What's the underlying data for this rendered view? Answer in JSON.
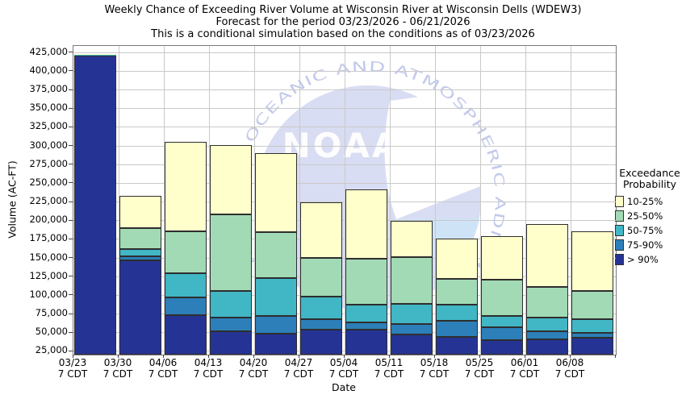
{
  "chart_data": {
    "type": "bar",
    "stacked": true,
    "title": "Weekly Chance of Exceeding River Volume at Wisconsin River at Wisconsin Dells (WDEW3)",
    "subtitle": "Forecast for the period 03/23/2026 - 06/21/2026",
    "subtitle2": "This is a conditional simulation based on the conditions as of 03/23/2026",
    "xlabel": "Date",
    "ylabel": "Volume (AC-FT)",
    "x_tick_line2": "7 CDT",
    "categories": [
      "03/23",
      "03/30",
      "04/06",
      "04/13",
      "04/20",
      "04/27",
      "05/04",
      "05/11",
      "05/18",
      "05/25",
      "06/01",
      "06/08"
    ],
    "y_ticks": [
      25000,
      50000,
      75000,
      100000,
      125000,
      150000,
      175000,
      200000,
      225000,
      250000,
      275000,
      300000,
      325000,
      350000,
      375000,
      400000,
      425000
    ],
    "ylim": [
      20500,
      434000
    ],
    "grid": true,
    "units": "AC-FT",
    "series": [
      {
        "name": "> 90%",
        "color": "#253494",
        "stack_top_acft": [
          421500,
          147000,
          73000,
          52000,
          48500,
          54000,
          54500,
          47500,
          44000,
          40000,
          41500,
          43500
        ]
      },
      {
        "name": "75-90%",
        "color": "#2C7FB8",
        "stack_top_acft": [
          422000,
          152000,
          97000,
          70500,
          72000,
          68500,
          64000,
          62000,
          66000,
          57000,
          52000,
          49500
        ]
      },
      {
        "name": "50-75%",
        "color": "#41B6C4",
        "stack_top_acft": [
          422500,
          162000,
          130000,
          106000,
          123000,
          98000,
          87500,
          89000,
          87000,
          72000,
          70000,
          68000
        ]
      },
      {
        "name": "25-50%",
        "color": "#A1DAB4",
        "stack_top_acft": [
          423000,
          190000,
          186000,
          208000,
          184500,
          150000,
          148500,
          151000,
          122000,
          121000,
          111000,
          106000
        ]
      },
      {
        "name": "10-25%",
        "color": "#FFFFCC",
        "stack_top_acft": [
          423400,
          233000,
          306000,
          301000,
          290000,
          225000,
          242000,
          200000,
          176000,
          179000,
          195000,
          185500
        ]
      }
    ],
    "legend": {
      "title_line1": "Exceedance",
      "title_line2": "Probability",
      "position": "right",
      "order_top_to_bottom": [
        "10-25%",
        "25-50%",
        "50-75%",
        "75-90%",
        "> 90%"
      ]
    },
    "watermark": {
      "org": "NOAA",
      "ring_text": "NATIONAL OCEANIC AND ATMOSPHERIC ADMINISTRATION"
    }
  },
  "style_colors": {
    "gridline": "#c9c9c9",
    "plot_border": "#7a7a7a",
    "bar_outline": "#2e2e2e",
    "watermark_disc": "#d9ddf3",
    "watermark_ring_text": "#c3c9ea",
    "watermark_sea": "#cfe3f7",
    "watermark_letters": "#ffffff"
  }
}
